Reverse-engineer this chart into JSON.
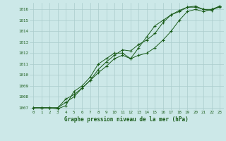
{
  "title": "Graphe pression niveau de la mer (hPa)",
  "bg_color": "#cce8e8",
  "grid_color": "#aacccc",
  "line_color": "#1a5c1a",
  "xlim": [
    -0.5,
    23.5
  ],
  "ylim": [
    1006.8,
    1016.6
  ],
  "yticks": [
    1007,
    1008,
    1009,
    1010,
    1011,
    1012,
    1013,
    1014,
    1015,
    1016
  ],
  "xticks": [
    0,
    1,
    2,
    3,
    4,
    5,
    6,
    7,
    8,
    9,
    10,
    11,
    12,
    13,
    14,
    15,
    16,
    17,
    18,
    19,
    20,
    21,
    22,
    23
  ],
  "series1": [
    1007.0,
    1007.0,
    1007.0,
    1007.0,
    1007.8,
    1008.2,
    1008.8,
    1009.5,
    1010.2,
    1010.8,
    1011.5,
    1011.8,
    1011.5,
    1011.8,
    1012.0,
    1012.5,
    1013.2,
    1014.0,
    1015.0,
    1015.8,
    1016.0,
    1015.8,
    1016.0,
    1016.2
  ],
  "series2": [
    1007.0,
    1007.0,
    1007.0,
    1007.0,
    1007.5,
    1008.0,
    1008.8,
    1009.5,
    1010.5,
    1011.2,
    1011.8,
    1012.3,
    1012.2,
    1012.8,
    1013.2,
    1013.8,
    1014.8,
    1015.5,
    1015.9,
    1016.2,
    1016.2,
    1016.0,
    1015.9,
    1016.3
  ],
  "series3": [
    1007.0,
    1007.0,
    1007.0,
    1006.9,
    1007.2,
    1008.5,
    1009.0,
    1009.8,
    1011.0,
    1011.5,
    1012.0,
    1012.0,
    1011.5,
    1012.5,
    1013.5,
    1014.5,
    1015.0,
    1015.5,
    1015.8,
    1016.2,
    1016.3,
    1016.0,
    1016.0,
    1016.3
  ]
}
